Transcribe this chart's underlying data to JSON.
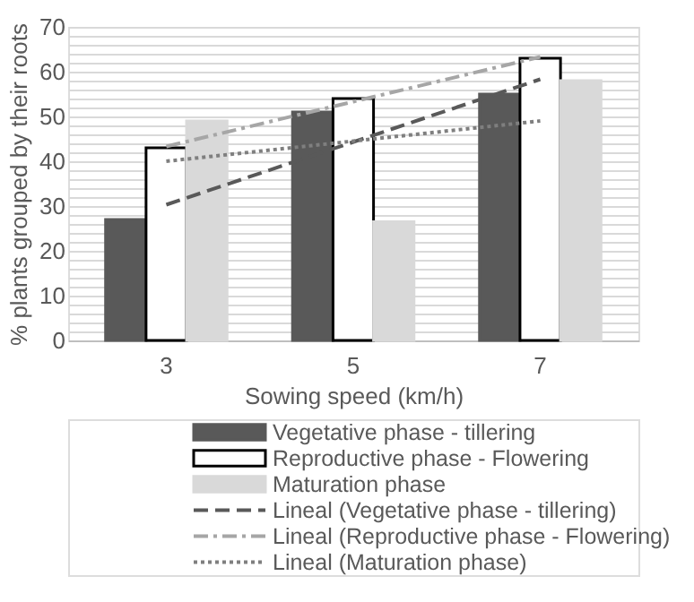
{
  "chart_data": {
    "type": "bar",
    "xlabel": "Sowing speed (km/h)",
    "ylabel": "% plants grouped by their roots",
    "categories": [
      "3",
      "5",
      "7"
    ],
    "series": [
      {
        "name": "Vegetative phase - tillering",
        "color": "#595959",
        "values": [
          27,
          51,
          55
        ]
      },
      {
        "name": "Reproductive phase - Flowering",
        "color": "#ffffff",
        "values": [
          43,
          54,
          63
        ]
      },
      {
        "name": "Maturation phase",
        "color": "#d9d9d9",
        "values": [
          49,
          26.5,
          58
        ]
      },
      {
        "name": "Lineal (Vegetative phase - tillering)",
        "type": "line",
        "color": "#595959",
        "line_style": "dashed",
        "values": [
          30.3,
          44.3,
          58.3
        ]
      },
      {
        "name": "Lineal (Reproductive phase - Flowering)",
        "type": "line",
        "color": "#a6a6a6",
        "line_style": "dashdot",
        "values": [
          43.3,
          53.3,
          63.3
        ]
      },
      {
        "name": "Lineal (Maturation phase)",
        "type": "line",
        "color": "#7f7f7f",
        "line_style": "dotted",
        "values": [
          40,
          44.5,
          49
        ]
      }
    ],
    "ylim": [
      0,
      70
    ],
    "yticks": [
      0,
      {
        "value": 2,
        "label": null
      },
      {
        "value": 4,
        "label": null
      },
      {
        "value": 6,
        "label": null
      },
      {
        "value": 8,
        "label": null
      },
      10,
      {
        "value": 12,
        "label": null
      },
      {
        "value": 14,
        "label": null
      },
      {
        "value": 16,
        "label": null
      },
      {
        "value": 18,
        "label": null
      },
      20,
      {
        "value": 22,
        "label": null
      },
      {
        "value": 24,
        "label": null
      },
      {
        "value": 26,
        "label": null
      },
      {
        "value": 28,
        "label": null
      },
      30,
      {
        "value": 32,
        "label": null
      },
      {
        "value": 34,
        "label": null
      },
      {
        "value": 36,
        "label": null
      },
      {
        "value": 38,
        "label": null
      },
      40,
      {
        "value": 42,
        "label": null
      },
      {
        "value": 44,
        "label": null
      },
      {
        "value": 46,
        "label": null
      },
      {
        "value": 48,
        "label": null
      },
      50,
      {
        "value": 52,
        "label": null
      },
      {
        "value": 54,
        "label": null
      },
      {
        "value": 56,
        "label": null
      },
      {
        "value": 58,
        "label": null
      },
      60,
      {
        "value": 62,
        "label": null
      },
      {
        "value": 64,
        "label": null
      },
      {
        "value": 66,
        "label": null
      },
      {
        "value": 68,
        "label": null
      },
      70
    ],
    "grid": "y",
    "legend": "bottom"
  }
}
